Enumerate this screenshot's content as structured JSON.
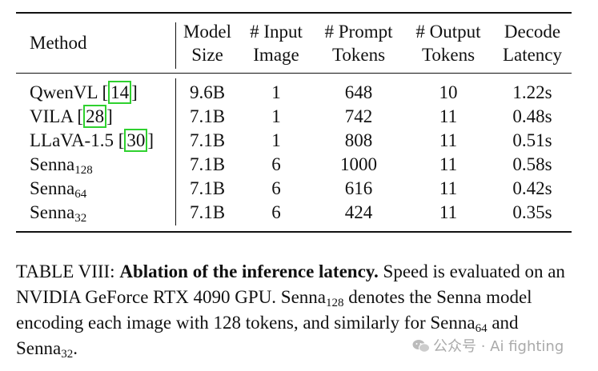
{
  "table": {
    "headers": [
      {
        "lines": [
          "Method"
        ]
      },
      {
        "lines": [
          "Model",
          "Size"
        ]
      },
      {
        "lines": [
          "# Input",
          "Image"
        ]
      },
      {
        "lines": [
          "# Prompt",
          "Tokens"
        ]
      },
      {
        "lines": [
          "# Output",
          "Tokens"
        ]
      },
      {
        "lines": [
          "Decode",
          "Latency"
        ]
      }
    ],
    "rows": [
      {
        "name": "QwenVL [",
        "cite": "14",
        "close": "]",
        "sub": "",
        "size": "9.6B",
        "images": "1",
        "prompt": "648",
        "output": "10",
        "latency": "1.22s"
      },
      {
        "name": "VILA [",
        "cite": "28",
        "close": "]",
        "sub": "",
        "size": "7.1B",
        "images": "1",
        "prompt": "742",
        "output": "11",
        "latency": "0.48s"
      },
      {
        "name": "LLaVA-1.5 [",
        "cite": "30",
        "close": "]",
        "sub": "",
        "size": "7.1B",
        "images": "1",
        "prompt": "808",
        "output": "11",
        "latency": "0.51s"
      },
      {
        "name": "Senna",
        "cite": "",
        "close": "",
        "sub": "128",
        "size": "7.1B",
        "images": "6",
        "prompt": "1000",
        "output": "11",
        "latency": "0.58s"
      },
      {
        "name": "Senna",
        "cite": "",
        "close": "",
        "sub": "64",
        "size": "7.1B",
        "images": "6",
        "prompt": "616",
        "output": "11",
        "latency": "0.42s"
      },
      {
        "name": "Senna",
        "cite": "",
        "close": "",
        "sub": "32",
        "size": "7.1B",
        "images": "6",
        "prompt": "424",
        "output": "11",
        "latency": "0.35s"
      }
    ]
  },
  "caption": {
    "label": "TABLE VIII: ",
    "bold": "Ablation of the inference latency.",
    "t1": " Speed is evaluated on an NVIDIA GeForce RTX 4090 GPU. Senna",
    "s1": "128",
    "t2": " denotes the Senna model encoding each image with 128 tokens, and similarly for Senna",
    "s2": "64",
    "t3": " and Senna",
    "s3": "32",
    "t4": "."
  },
  "watermark": {
    "text": "公众号 · Ai fighting"
  }
}
